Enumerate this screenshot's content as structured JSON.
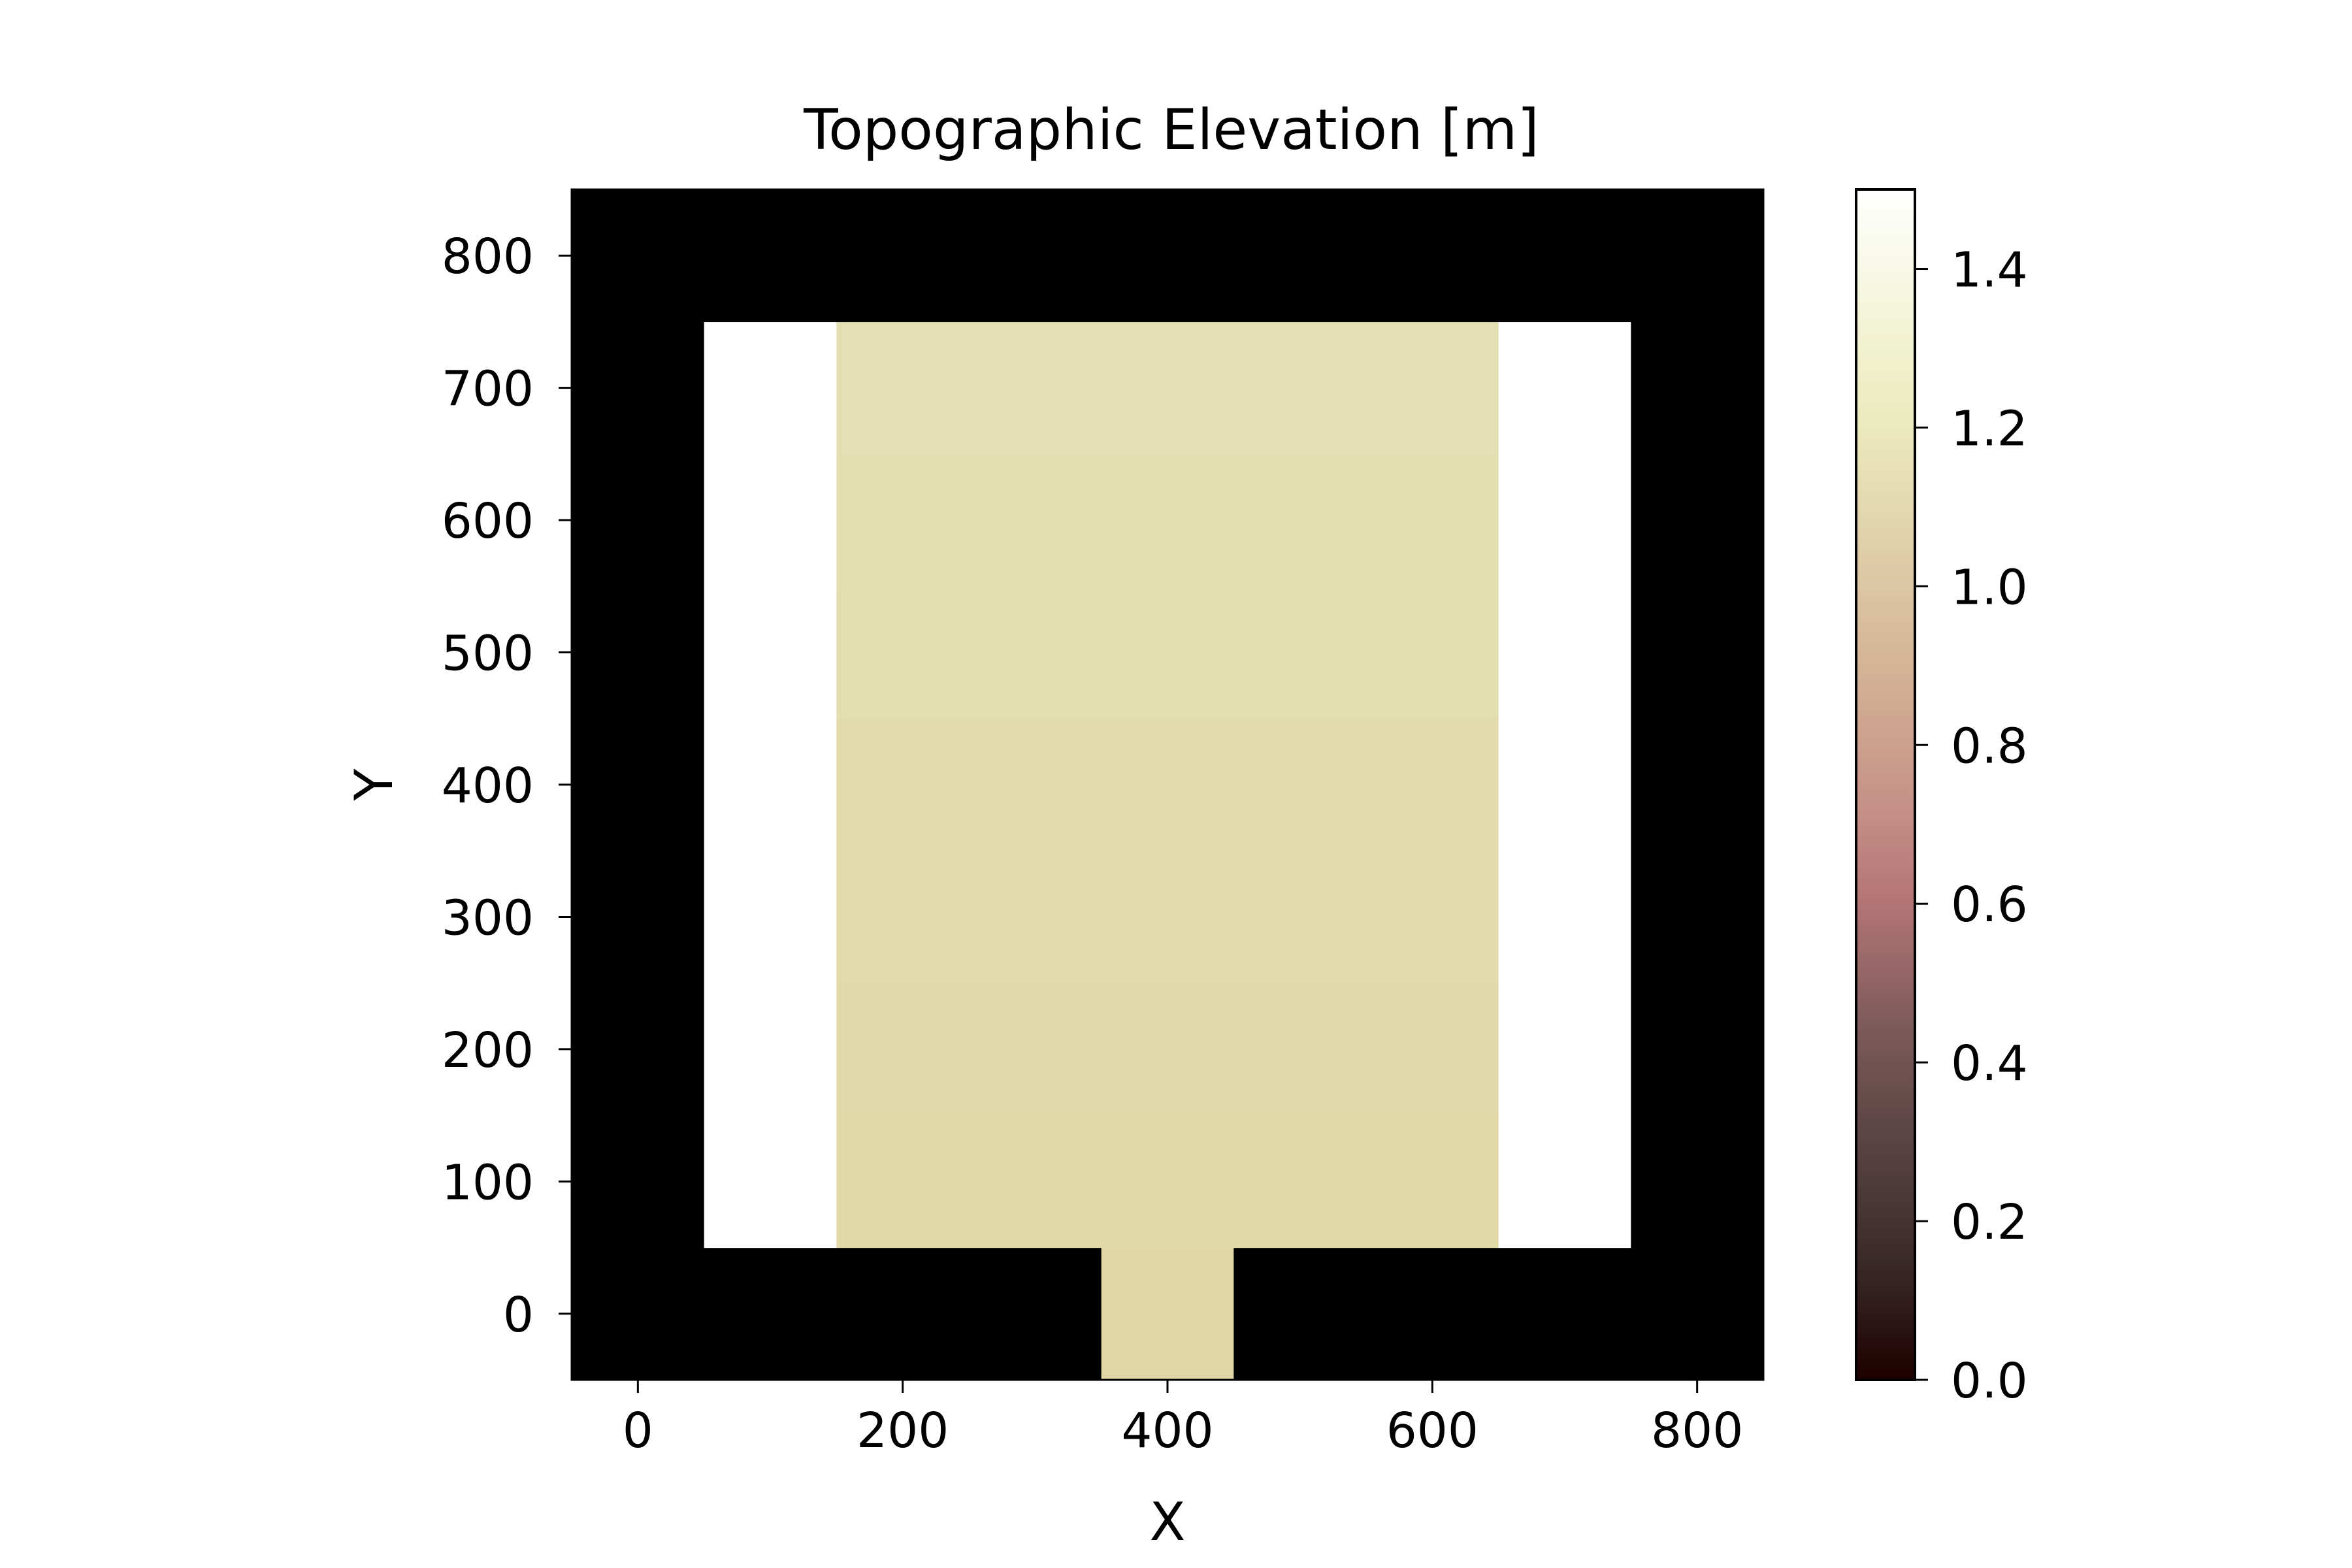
{
  "chart_data": {
    "type": "heatmap",
    "title": "Topographic Elevation [m]",
    "xlabel": "X",
    "ylabel": "Y",
    "xlim": [
      -50,
      850
    ],
    "ylim": [
      -50,
      850
    ],
    "x_ticks": [
      0,
      200,
      400,
      600,
      800
    ],
    "y_ticks": [
      0,
      100,
      200,
      300,
      400,
      500,
      600,
      700,
      800
    ],
    "grid": false,
    "cell_size": 100,
    "x_centers": [
      0,
      100,
      200,
      300,
      400,
      500,
      600,
      700,
      800
    ],
    "y_centers": [
      0,
      100,
      200,
      300,
      400,
      500,
      600,
      700,
      800
    ],
    "z_rows_bottom_to_top": [
      [
        0,
        0,
        0,
        0,
        0.95,
        0,
        0,
        0,
        0
      ],
      [
        0,
        1.5,
        0.96,
        0.96,
        0.96,
        0.96,
        0.96,
        1.5,
        0
      ],
      [
        0,
        1.5,
        0.97,
        0.97,
        0.97,
        0.97,
        0.97,
        1.5,
        0
      ],
      [
        0,
        1.5,
        0.98,
        0.98,
        0.98,
        0.98,
        0.98,
        1.5,
        0
      ],
      [
        0,
        1.5,
        0.99,
        0.99,
        0.99,
        0.99,
        0.99,
        1.5,
        0
      ],
      [
        0,
        1.5,
        1.0,
        1.0,
        1.0,
        1.0,
        1.0,
        1.5,
        0
      ],
      [
        0,
        1.5,
        1.01,
        1.01,
        1.01,
        1.01,
        1.01,
        1.5,
        0
      ],
      [
        0,
        1.5,
        1.02,
        1.02,
        1.02,
        1.02,
        1.02,
        1.5,
        0
      ],
      [
        0,
        0,
        0,
        0,
        0,
        0,
        0,
        0,
        0
      ]
    ],
    "colorbar": {
      "range": [
        0,
        1.5
      ],
      "ticks": [
        "0.0",
        "0.2",
        "0.4",
        "0.6",
        "0.8",
        "1.0",
        "1.2",
        "1.4"
      ],
      "colormap": "pink"
    }
  }
}
